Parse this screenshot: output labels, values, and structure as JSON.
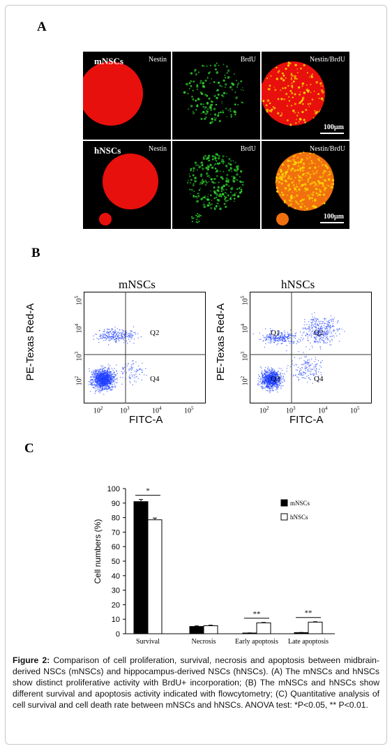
{
  "panels": {
    "a_label": "A",
    "b_label": "B",
    "c_label": "C"
  },
  "micrographs": {
    "row1_group": "mNSCs",
    "row2_group": "hNSCs",
    "channels": [
      "Nestin",
      "BrdU",
      "Nestin/BrdU"
    ],
    "scale_label": "100µm",
    "colors": {
      "nestin": "#e8100c",
      "brdu": "#2ecc2e",
      "merge": "#f07010"
    }
  },
  "flow": {
    "left_title": "mNSCs",
    "right_title": "hNSCs",
    "xlabel": "FITC-A",
    "ylabel": "PE-Texas Red-A",
    "x_ticks": [
      "10",
      "10",
      "10",
      "10"
    ],
    "x_tick_exps": [
      "2",
      "3",
      "4",
      "5"
    ],
    "y_ticks": [
      "10",
      "10",
      "10",
      "10"
    ],
    "y_tick_exps": [
      "2",
      "3",
      "4",
      "5"
    ],
    "left_quadrants": [
      "Q2",
      "Q4"
    ],
    "right_quadrants": [
      "Q1",
      "Q2",
      "Q3",
      "Q4"
    ],
    "dot_color": "#1a3cff"
  },
  "chart_data": {
    "type": "bar",
    "categories": [
      "Survival",
      "Necrosis",
      "Early apoptosis",
      "Late apoptosis"
    ],
    "series": [
      {
        "name": "mNSCs",
        "values": [
          91,
          5,
          0.5,
          0.8
        ],
        "errors": [
          1.5,
          0.4,
          0.1,
          0.1
        ],
        "color": "#000000"
      },
      {
        "name": "hNSCs",
        "values": [
          78.5,
          5.5,
          7.5,
          8
        ],
        "errors": [
          1.2,
          0.4,
          0.3,
          0.3
        ],
        "color": "#ffffff"
      }
    ],
    "ylabel": "Cell numbers  (%)",
    "ylim": [
      0,
      100
    ],
    "y_ticks": [
      "0",
      "10",
      "20",
      "30",
      "40",
      "50",
      "60",
      "70",
      "80",
      "90",
      "100"
    ],
    "significance": [
      "*",
      "",
      "**",
      "**"
    ],
    "legend_position": "top-right"
  },
  "caption": {
    "label": "Figure 2:",
    "text": " Comparison of cell proliferation, survival, necrosis and apoptosis between midbrain-derived NSCs (mNSCs) and hippocampus-derived NSCs (hNSCs).  (A) The mNSCs and hNSCs show distinct proliferative activity with BrdU+ incorporation; (B) The mNSCs and hNSCs show different survival and apoptosis activity indicated with flowcytometry; (C) Quantitative analysis of cell survival and cell death rate between mNSCs and hNSCs.  ANOVA test: *P<0.05, ** P<0.01."
  }
}
